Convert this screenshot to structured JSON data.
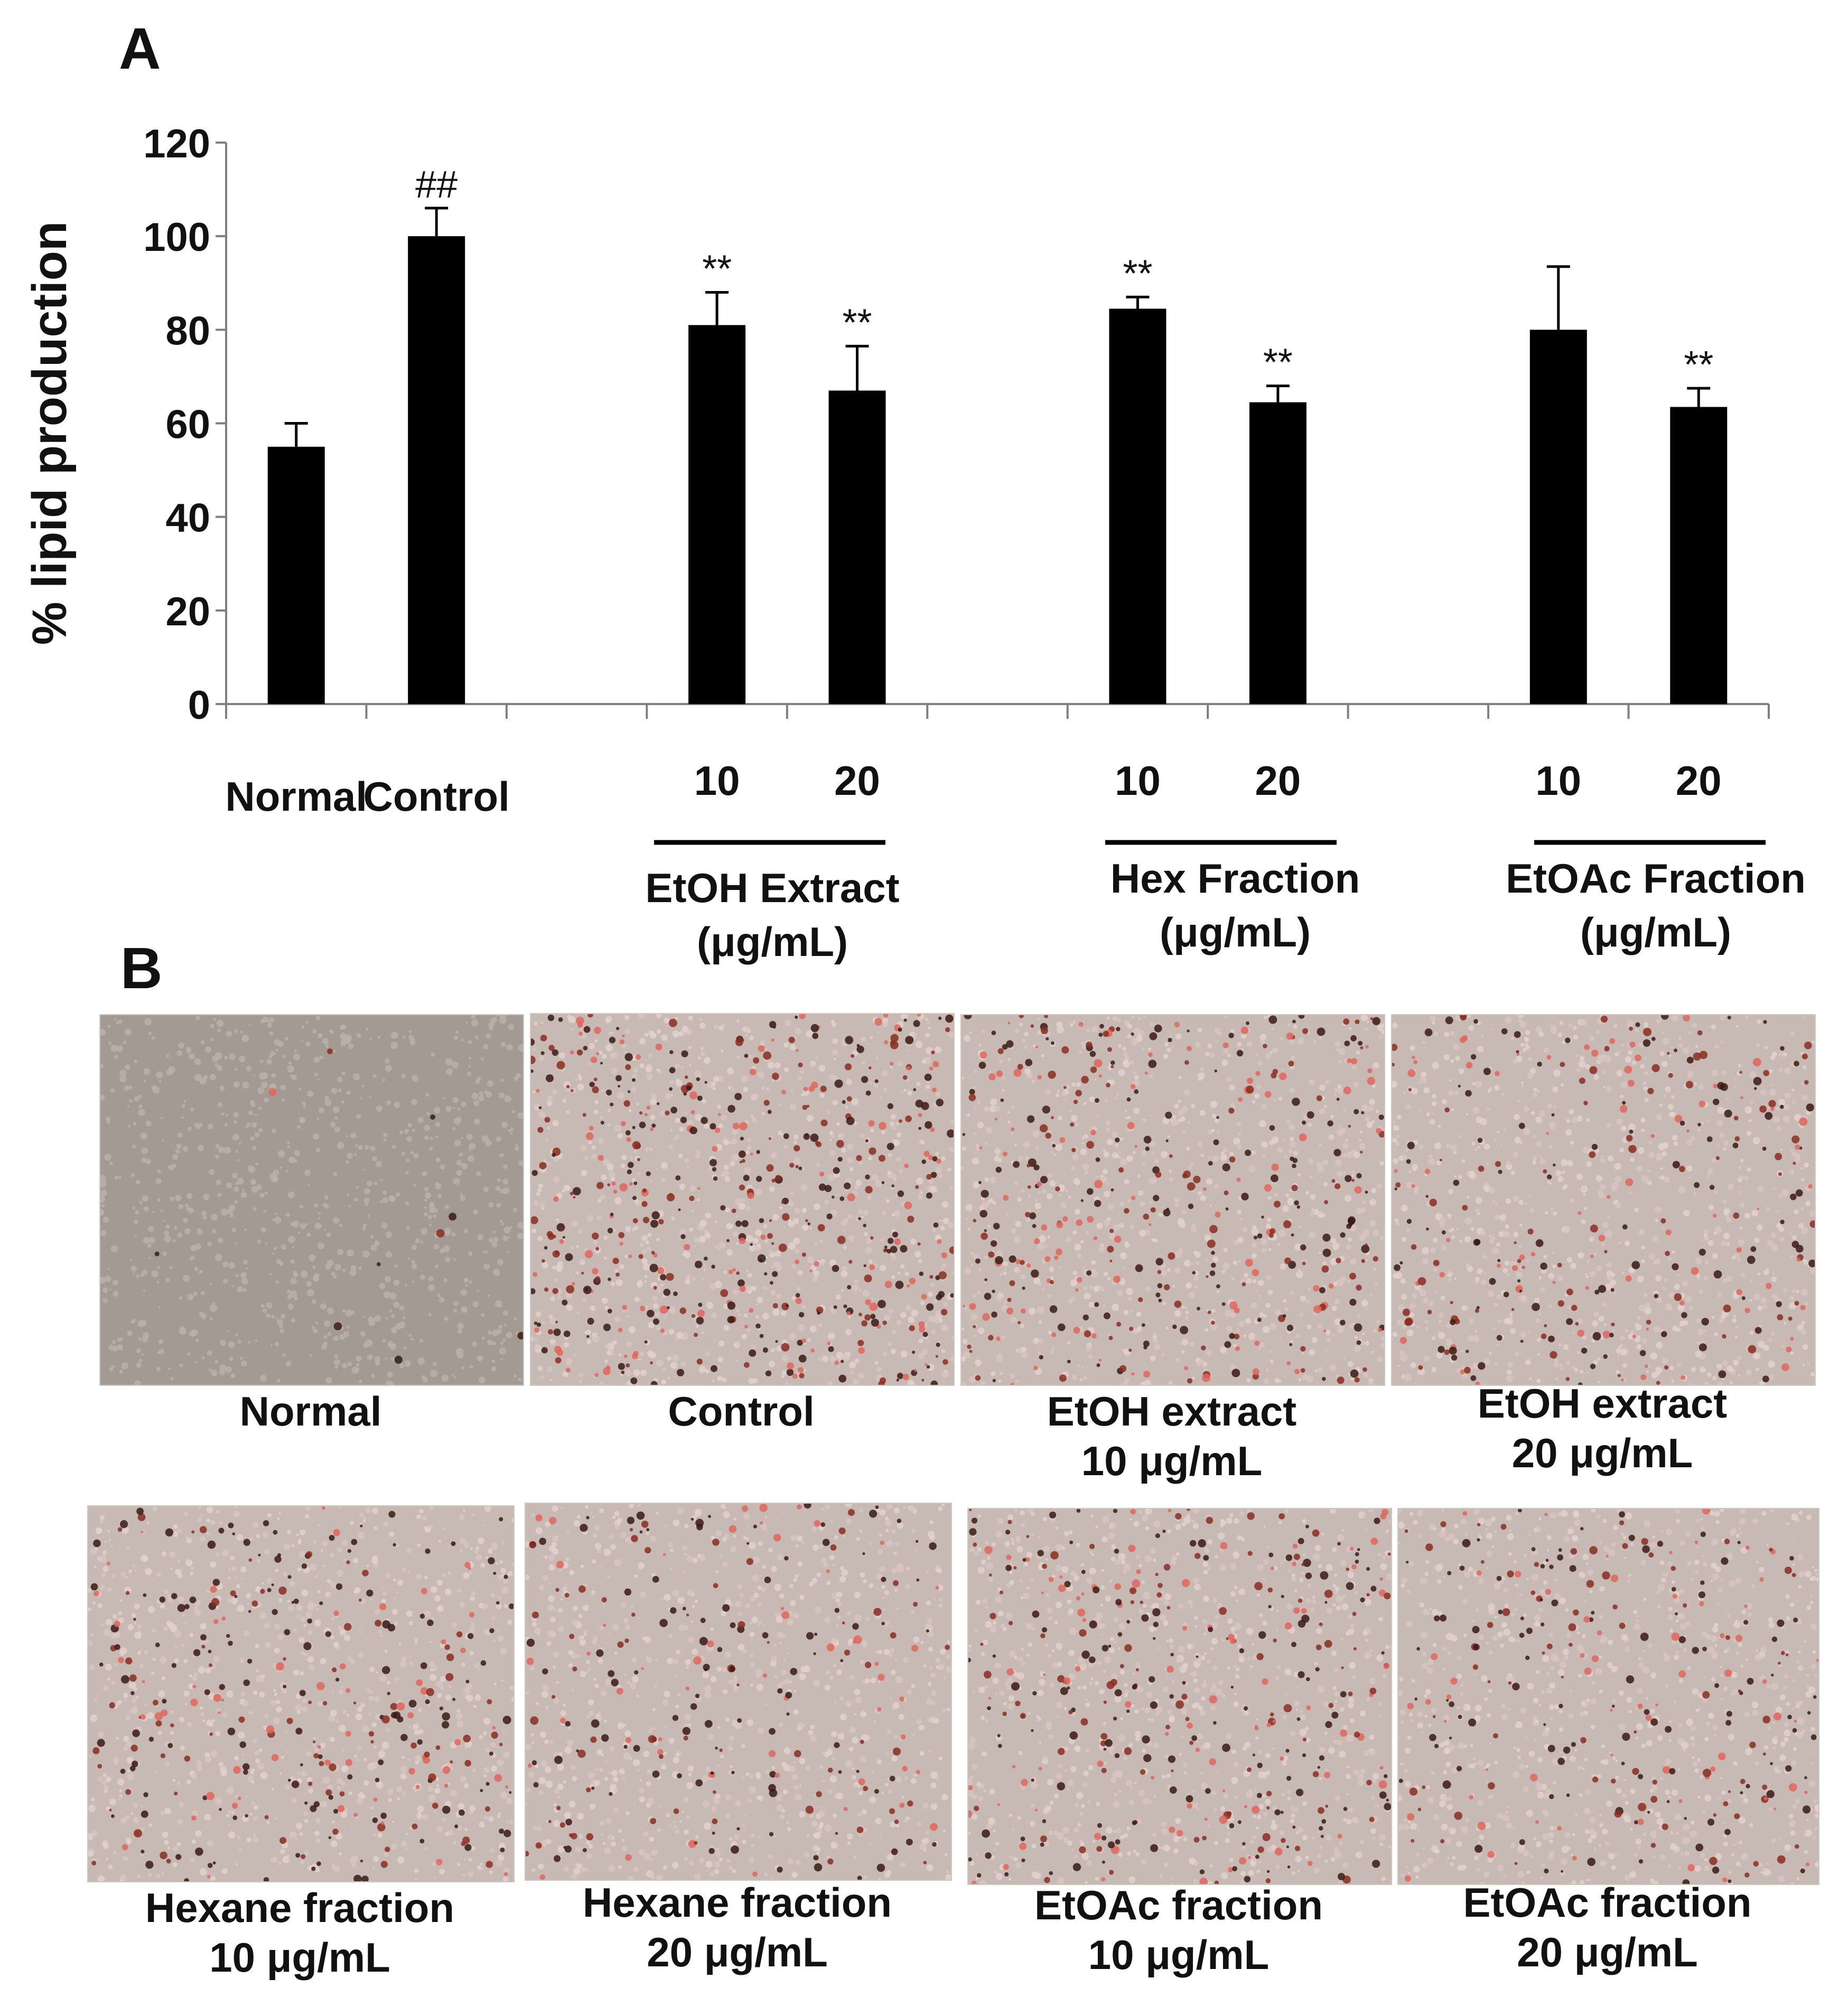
{
  "panel_a_label": "A",
  "panel_b_label": "B",
  "chart_data": {
    "type": "bar",
    "title": "",
    "ylabel": "% lipid production",
    "xlabel": "",
    "ylim": [
      0,
      120
    ],
    "yticks": [
      "0",
      "20",
      "40",
      "60",
      "80",
      "100",
      "120"
    ],
    "grid": false,
    "legend": "none",
    "bar_color": "#000000",
    "categories": [
      {
        "label": "Normal",
        "value": 55,
        "error": 5,
        "annotation": ""
      },
      {
        "label": "Control",
        "value": 100,
        "error": 6,
        "annotation": "##"
      },
      {
        "label": "",
        "value": null,
        "error": null,
        "annotation": ""
      },
      {
        "label": "10",
        "value": 81,
        "error": 7,
        "annotation": "**"
      },
      {
        "label": "20",
        "value": 67,
        "error": 9.5,
        "annotation": "**"
      },
      {
        "label": "",
        "value": null,
        "error": null,
        "annotation": ""
      },
      {
        "label": "10",
        "value": 84.5,
        "error": 2.5,
        "annotation": "**"
      },
      {
        "label": "20",
        "value": 64.5,
        "error": 3.5,
        "annotation": "**"
      },
      {
        "label": "",
        "value": null,
        "error": null,
        "annotation": ""
      },
      {
        "label": "10",
        "value": 80,
        "error": 13.5,
        "annotation": ""
      },
      {
        "label": "20",
        "value": 63.5,
        "error": 4,
        "annotation": "**"
      }
    ],
    "groups": [
      {
        "line1": "EtOH Extract",
        "line2": "(μg/mL)"
      },
      {
        "line1": "Hex Fraction",
        "line2": "(μg/mL)"
      },
      {
        "line1": "EtOAc Fraction",
        "line2": "(μg/mL)"
      }
    ]
  },
  "photos": [
    {
      "line1": "Normal",
      "line2": "",
      "stain": 0.02
    },
    {
      "line1": "Control",
      "line2": "",
      "stain": 1.0
    },
    {
      "line1": "EtOH extract",
      "line2": "10 μg/mL",
      "stain": 0.75
    },
    {
      "line1": "EtOH extract",
      "line2": "20 μg/mL",
      "stain": 0.55
    },
    {
      "line1": "Hexane fraction",
      "line2": "10 μg/mL",
      "stain": 0.6
    },
    {
      "line1": "Hexane fraction",
      "line2": "20 μg/mL",
      "stain": 0.45
    },
    {
      "line1": "EtOAc fraction",
      "line2": "10 μg/mL",
      "stain": 0.7
    },
    {
      "line1": "EtOAc fraction",
      "line2": "20 μg/mL",
      "stain": 0.5
    }
  ]
}
